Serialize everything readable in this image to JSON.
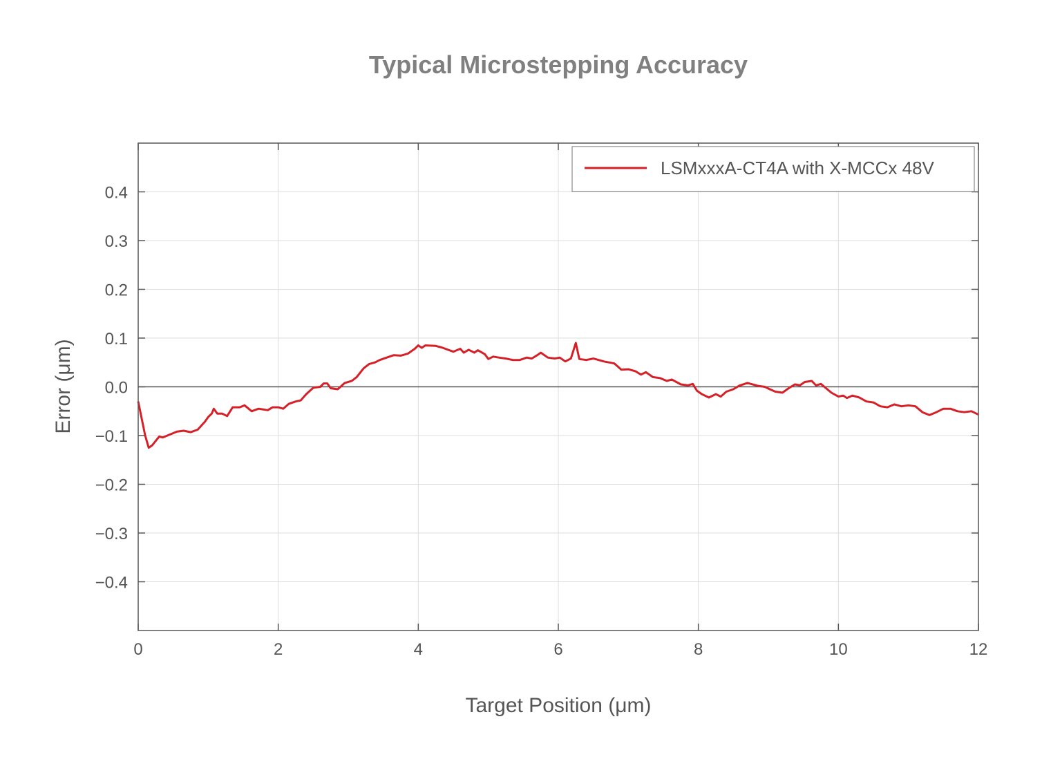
{
  "chart_data": {
    "type": "line",
    "title": "Typical Microstepping Accuracy",
    "xlabel": "Target Position (μm)",
    "ylabel": "Error (μm)",
    "xlim": [
      0,
      12
    ],
    "ylim": [
      -0.5,
      0.5
    ],
    "xticks": [
      0,
      2,
      4,
      6,
      8,
      10,
      12
    ],
    "xtick_labels": [
      "0",
      "2",
      "4",
      "6",
      "8",
      "10",
      "12"
    ],
    "yticks": [
      -0.4,
      -0.3,
      -0.2,
      -0.1,
      0.0,
      0.1,
      0.2,
      0.3,
      0.4
    ],
    "ytick_labels": [
      "−0.4",
      "−0.3",
      "−0.2",
      "−0.1",
      "0.0",
      "0.1",
      "0.2",
      "0.3",
      "0.4"
    ],
    "grid": true,
    "legend_placement": "top-right",
    "colors": {
      "series": "#d62027",
      "title": "#808080",
      "text": "#555555",
      "axis": "#555555",
      "grid": "#dddddd"
    },
    "series": [
      {
        "name": "LSMxxxA-CT4A with X-MCCx 48V",
        "x": [
          0,
          0.1,
          0.15,
          0.2,
          0.3,
          0.35,
          0.45,
          0.55,
          0.65,
          0.75,
          0.85,
          0.95,
          1.0,
          1.05,
          1.08,
          1.13,
          1.2,
          1.27,
          1.35,
          1.45,
          1.52,
          1.62,
          1.72,
          1.85,
          1.92,
          2.0,
          2.07,
          2.15,
          2.25,
          2.32,
          2.4,
          2.5,
          2.6,
          2.65,
          2.7,
          2.75,
          2.85,
          2.95,
          3.05,
          3.12,
          3.22,
          3.3,
          3.38,
          3.45,
          3.55,
          3.65,
          3.75,
          3.85,
          3.95,
          4.0,
          4.05,
          4.1,
          4.25,
          4.35,
          4.5,
          4.6,
          4.65,
          4.72,
          4.8,
          4.85,
          4.95,
          5.0,
          5.07,
          5.15,
          5.25,
          5.35,
          5.45,
          5.55,
          5.62,
          5.7,
          5.75,
          5.85,
          5.95,
          6.02,
          6.1,
          6.18,
          6.25,
          6.3,
          6.4,
          6.5,
          6.65,
          6.8,
          6.9,
          7.0,
          7.1,
          7.18,
          7.25,
          7.35,
          7.45,
          7.55,
          7.62,
          7.75,
          7.85,
          7.92,
          7.98,
          8.05,
          8.15,
          8.25,
          8.32,
          8.4,
          8.5,
          8.58,
          8.7,
          8.85,
          8.95,
          9.02,
          9.1,
          9.2,
          9.3,
          9.38,
          9.45,
          9.52,
          9.62,
          9.68,
          9.75,
          9.9,
          10.0,
          10.07,
          10.12,
          10.2,
          10.3,
          10.4,
          10.5,
          10.6,
          10.7,
          10.8,
          10.9,
          11.0,
          11.1,
          11.2,
          11.3,
          11.4,
          11.5,
          11.6,
          11.7,
          11.8,
          11.9,
          12.0
        ],
        "y": [
          -0.03,
          -0.1,
          -0.125,
          -0.12,
          -0.102,
          -0.104,
          -0.098,
          -0.092,
          -0.09,
          -0.093,
          -0.088,
          -0.072,
          -0.062,
          -0.055,
          -0.045,
          -0.055,
          -0.055,
          -0.06,
          -0.042,
          -0.042,
          -0.038,
          -0.05,
          -0.045,
          -0.048,
          -0.042,
          -0.042,
          -0.045,
          -0.035,
          -0.03,
          -0.028,
          -0.015,
          -0.002,
          0.0,
          0.007,
          0.007,
          -0.003,
          -0.005,
          0.008,
          0.012,
          0.02,
          0.038,
          0.047,
          0.05,
          0.055,
          0.06,
          0.065,
          0.064,
          0.068,
          0.078,
          0.085,
          0.08,
          0.085,
          0.084,
          0.08,
          0.072,
          0.078,
          0.07,
          0.076,
          0.07,
          0.075,
          0.067,
          0.057,
          0.062,
          0.06,
          0.058,
          0.055,
          0.055,
          0.06,
          0.058,
          0.065,
          0.07,
          0.06,
          0.058,
          0.06,
          0.052,
          0.058,
          0.09,
          0.057,
          0.055,
          0.058,
          0.052,
          0.048,
          0.035,
          0.036,
          0.032,
          0.025,
          0.03,
          0.02,
          0.018,
          0.012,
          0.015,
          0.005,
          0.003,
          0.006,
          -0.008,
          -0.015,
          -0.022,
          -0.015,
          -0.02,
          -0.01,
          -0.005,
          0.002,
          0.008,
          0.002,
          0.0,
          -0.005,
          -0.01,
          -0.012,
          -0.002,
          0.005,
          0.003,
          0.01,
          0.012,
          0.003,
          0.006,
          -0.012,
          -0.02,
          -0.018,
          -0.023,
          -0.018,
          -0.022,
          -0.03,
          -0.032,
          -0.04,
          -0.042,
          -0.036,
          -0.04,
          -0.038,
          -0.04,
          -0.052,
          -0.058,
          -0.052,
          -0.045,
          -0.045,
          -0.05,
          -0.052,
          -0.05,
          -0.057
        ]
      }
    ]
  }
}
